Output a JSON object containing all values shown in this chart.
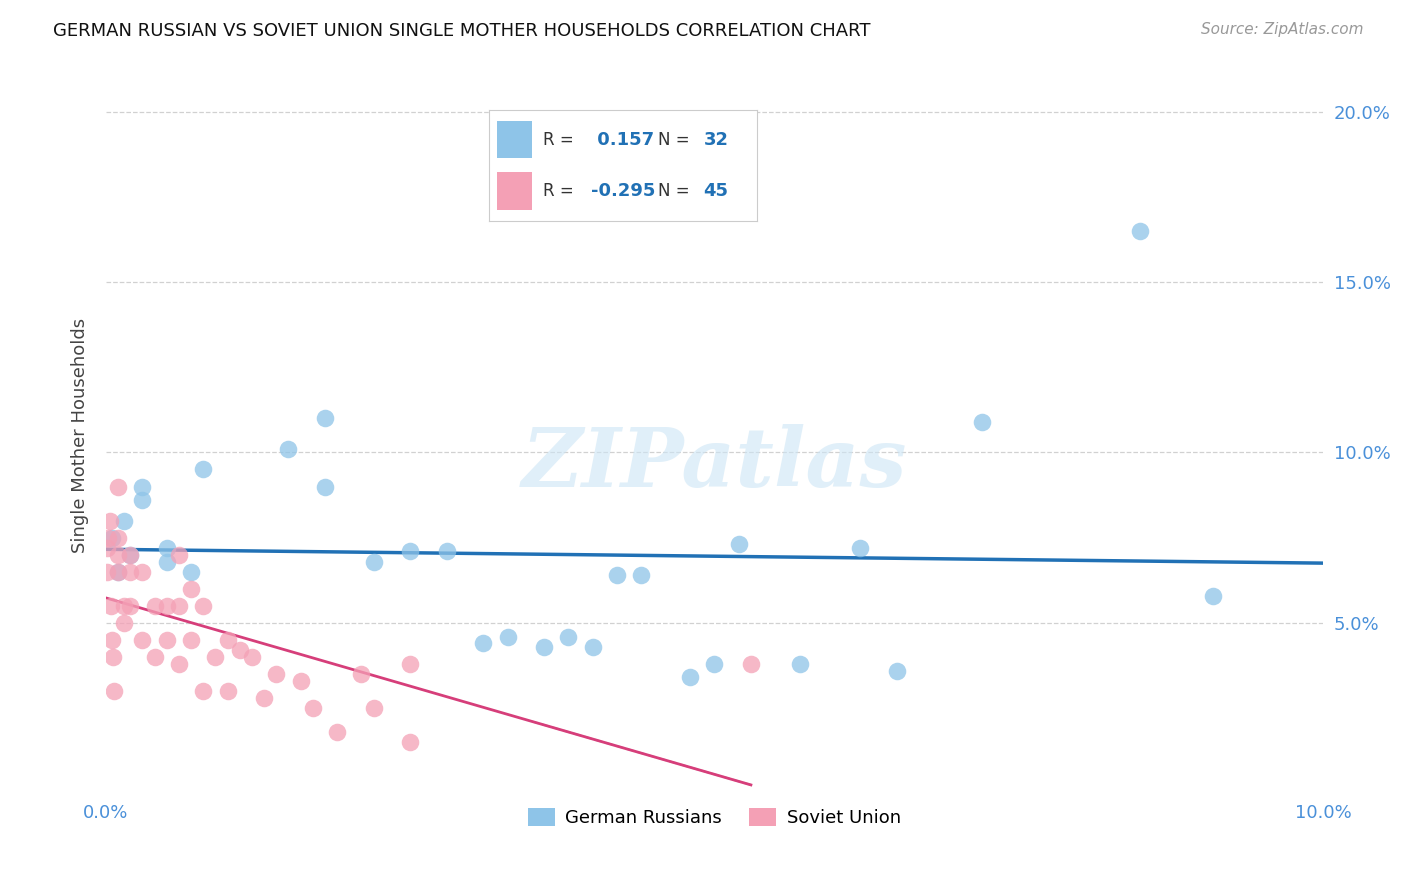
{
  "title": "GERMAN RUSSIAN VS SOVIET UNION SINGLE MOTHER HOUSEHOLDS CORRELATION CHART",
  "source": "Source: ZipAtlas.com",
  "ylabel": "Single Mother Households",
  "xlim": [
    0.0,
    0.1
  ],
  "ylim": [
    0.0,
    0.21
  ],
  "xticks": [
    0.0,
    0.1
  ],
  "yticks": [
    0.05,
    0.1,
    0.15,
    0.2
  ],
  "xtick_labels": [
    "0.0%",
    "10.0%"
  ],
  "ytick_labels": [
    "5.0%",
    "10.0%",
    "15.0%",
    "20.0%"
  ],
  "grid_yticks": [
    0.05,
    0.1,
    0.15,
    0.2
  ],
  "grid_color": "#cccccc",
  "background_color": "#ffffff",
  "watermark_text": "ZIPatlas",
  "blue_color": "#8ec4e8",
  "pink_color": "#f4a0b5",
  "blue_line_color": "#2171b5",
  "pink_line_color": "#d63e7a",
  "tick_label_color": "#4a90d9",
  "r_blue": 0.157,
  "n_blue": 32,
  "r_pink": -0.295,
  "n_pink": 45,
  "blue_x": [
    0.0005,
    0.001,
    0.0015,
    0.002,
    0.003,
    0.003,
    0.005,
    0.005,
    0.007,
    0.008,
    0.015,
    0.018,
    0.018,
    0.022,
    0.025,
    0.028,
    0.031,
    0.033,
    0.036,
    0.038,
    0.04,
    0.042,
    0.044,
    0.048,
    0.05,
    0.052,
    0.057,
    0.062,
    0.065,
    0.072,
    0.085,
    0.091
  ],
  "blue_y": [
    0.075,
    0.065,
    0.08,
    0.07,
    0.09,
    0.086,
    0.072,
    0.068,
    0.065,
    0.095,
    0.101,
    0.11,
    0.09,
    0.068,
    0.071,
    0.071,
    0.044,
    0.046,
    0.043,
    0.046,
    0.043,
    0.064,
    0.064,
    0.034,
    0.038,
    0.073,
    0.038,
    0.072,
    0.036,
    0.109,
    0.165,
    0.058
  ],
  "pink_x": [
    0.0001,
    0.0001,
    0.0002,
    0.0003,
    0.0004,
    0.0005,
    0.0006,
    0.0007,
    0.001,
    0.001,
    0.001,
    0.001,
    0.0015,
    0.0015,
    0.002,
    0.002,
    0.002,
    0.003,
    0.003,
    0.004,
    0.004,
    0.005,
    0.005,
    0.006,
    0.006,
    0.006,
    0.007,
    0.007,
    0.008,
    0.008,
    0.009,
    0.01,
    0.01,
    0.011,
    0.012,
    0.013,
    0.014,
    0.016,
    0.017,
    0.019,
    0.021,
    0.022,
    0.025,
    0.025,
    0.053
  ],
  "pink_y": [
    0.065,
    0.072,
    0.075,
    0.08,
    0.055,
    0.045,
    0.04,
    0.03,
    0.09,
    0.075,
    0.07,
    0.065,
    0.055,
    0.05,
    0.07,
    0.065,
    0.055,
    0.065,
    0.045,
    0.055,
    0.04,
    0.055,
    0.045,
    0.07,
    0.055,
    0.038,
    0.06,
    0.045,
    0.055,
    0.03,
    0.04,
    0.045,
    0.03,
    0.042,
    0.04,
    0.028,
    0.035,
    0.033,
    0.025,
    0.018,
    0.035,
    0.025,
    0.038,
    0.015,
    0.038
  ]
}
